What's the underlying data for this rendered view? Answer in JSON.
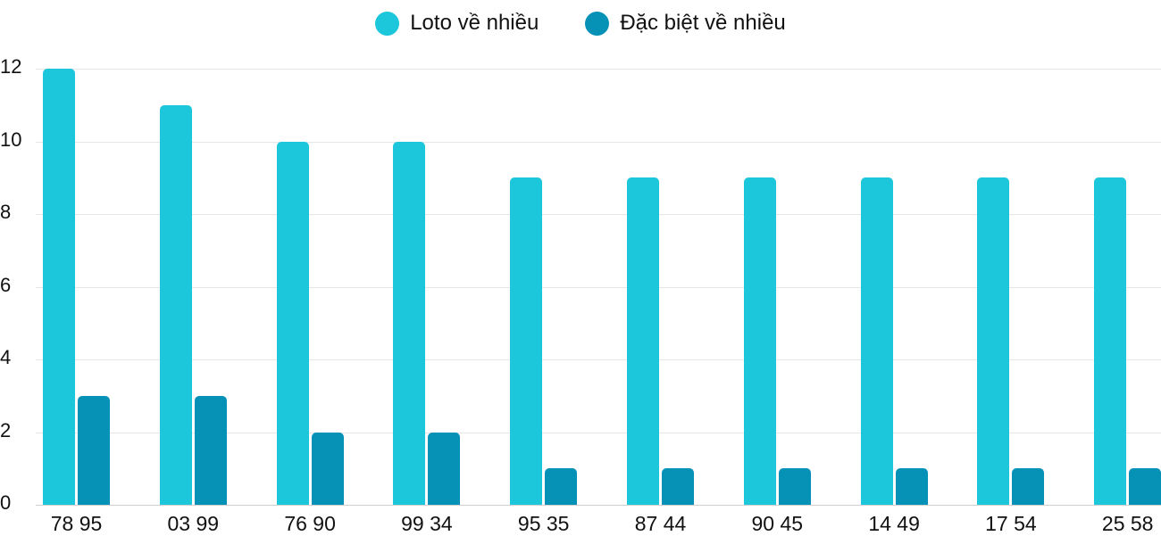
{
  "chart_data": {
    "type": "bar",
    "title": "",
    "xlabel": "",
    "ylabel": "",
    "ylim": [
      0,
      12
    ],
    "yticks": [
      0,
      2,
      4,
      6,
      8,
      10,
      12
    ],
    "grid": true,
    "legend_position": "top",
    "categories": [
      "78 95",
      "03 99",
      "76 90",
      "99 34",
      "95 35",
      "87 44",
      "90 45",
      "14 49",
      "17 54",
      "25 58"
    ],
    "series": [
      {
        "name": "Loto về nhiều",
        "color": "#1cc7db",
        "values": [
          12,
          11,
          10,
          10,
          9,
          9,
          9,
          9,
          9,
          9
        ]
      },
      {
        "name": "Đặc biệt về nhiều",
        "color": "#0592b6",
        "values": [
          3,
          3,
          2,
          2,
          1,
          1,
          1,
          1,
          1,
          1
        ]
      }
    ]
  }
}
